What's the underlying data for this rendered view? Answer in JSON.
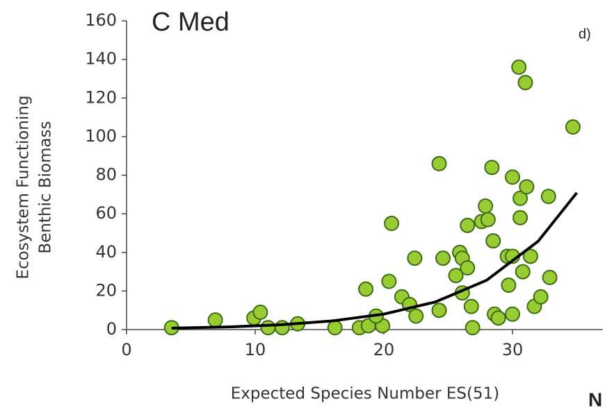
{
  "chart_data": {
    "type": "scatter",
    "title": "C Med",
    "panel_label": "d)",
    "corner_text": "N",
    "y_label": [
      "Ecosystem Functioning",
      "Benthic Biomass"
    ],
    "x_label": "Expected Species Number ES(51)",
    "xlim": [
      0,
      37
    ],
    "xticks": [
      0,
      10,
      20,
      30
    ],
    "ylim": [
      0,
      160
    ],
    "yticks": [
      0,
      20,
      40,
      60,
      80,
      100,
      120,
      140,
      160
    ],
    "series": [
      {
        "color": "#99cc33",
        "edge": "#3a6b14",
        "x": [
          3.5,
          6.9,
          9.9,
          10.4,
          11.0,
          12.1,
          13.3,
          16.2,
          18.1,
          18.8,
          18.6,
          19.9,
          20.4,
          19.4,
          21.4,
          22.0,
          22.5,
          20.6,
          22.4,
          24.3,
          24.6,
          24.3,
          25.6,
          25.9,
          26.1,
          26.1,
          26.5,
          26.5,
          26.8,
          26.9,
          27.6,
          27.9,
          28.1,
          28.4,
          28.5,
          28.6,
          28.9,
          29.6,
          30.0,
          30.0,
          30.0,
          29.7,
          30.5,
          31.0,
          30.6,
          30.6,
          30.8,
          31.1,
          31.4,
          31.7,
          32.2,
          32.8,
          32.9,
          34.7
        ],
        "values": [
          1,
          5,
          6,
          9,
          1,
          1,
          3,
          1,
          1,
          2,
          21,
          2,
          25,
          7,
          17,
          13,
          7,
          55,
          37,
          86,
          37,
          10,
          28,
          40,
          37,
          19,
          32,
          54,
          12,
          1,
          56,
          64,
          57,
          84,
          46,
          8,
          6,
          38,
          38,
          79,
          8,
          23,
          136,
          128,
          68,
          58,
          30,
          74,
          38,
          12,
          17,
          69,
          27,
          105
        ]
      }
    ],
    "trend": {
      "color": "#000000",
      "x": [
        3.5,
        8,
        12,
        16,
        20,
        24,
        28,
        32,
        35
      ],
      "values": [
        0.73,
        1.4,
        2.51,
        4.49,
        8.03,
        14.3,
        25.6,
        45.8,
        70.9
      ]
    }
  }
}
